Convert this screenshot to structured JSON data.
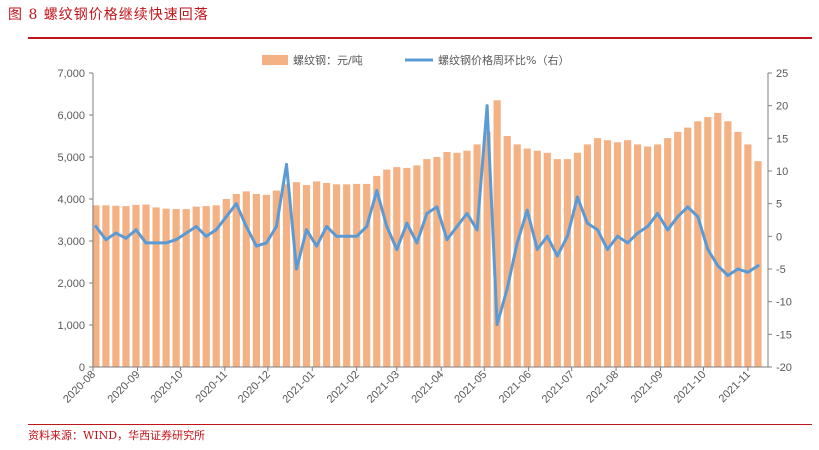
{
  "figure": {
    "title": "图 8   螺纹钢价格继续快速回落",
    "source": "资料来源：WIND，华西证券研究所"
  },
  "colors": {
    "accent": "#c0141b",
    "bar": "#f4b183",
    "line": "#5b9bd5",
    "axis": "#7f7f7f"
  },
  "chart_data": {
    "type": "bar+line",
    "legend_position": "top",
    "grid": false,
    "series": [
      {
        "name": "螺纹钢：元/吨",
        "type": "bar",
        "axis": "left",
        "x": [
          "2020-08-03",
          "2020-08-10",
          "2020-08-17",
          "2020-08-24",
          "2020-08-31",
          "2020-09-07",
          "2020-09-14",
          "2020-09-21",
          "2020-09-28",
          "2020-10-05",
          "2020-10-12",
          "2020-10-19",
          "2020-10-26",
          "2020-11-02",
          "2020-11-09",
          "2020-11-16",
          "2020-11-23",
          "2020-11-30",
          "2020-12-07",
          "2020-12-14",
          "2020-12-21",
          "2020-12-28",
          "2021-01-04",
          "2021-01-11",
          "2021-01-18",
          "2021-01-25",
          "2021-02-01",
          "2021-02-08",
          "2021-02-15",
          "2021-02-22",
          "2021-03-01",
          "2021-03-08",
          "2021-03-15",
          "2021-03-22",
          "2021-03-29",
          "2021-04-05",
          "2021-04-12",
          "2021-04-19",
          "2021-04-26",
          "2021-05-03",
          "2021-05-10",
          "2021-05-17",
          "2021-05-24",
          "2021-05-31",
          "2021-06-07",
          "2021-06-14",
          "2021-06-21",
          "2021-06-28",
          "2021-07-05",
          "2021-07-12",
          "2021-07-19",
          "2021-07-26",
          "2021-08-02",
          "2021-08-09",
          "2021-08-16",
          "2021-08-23",
          "2021-08-30",
          "2021-09-06",
          "2021-09-13",
          "2021-09-20",
          "2021-09-27",
          "2021-10-04",
          "2021-10-11",
          "2021-10-18",
          "2021-10-25",
          "2021-11-01",
          "2021-11-08"
        ],
        "values": [
          3850,
          3850,
          3840,
          3830,
          3860,
          3870,
          3800,
          3770,
          3760,
          3760,
          3820,
          3830,
          3850,
          4000,
          4120,
          4180,
          4120,
          4100,
          4200,
          4350,
          4400,
          4330,
          4420,
          4380,
          4350,
          4350,
          4360,
          4360,
          4550,
          4700,
          4760,
          4740,
          4800,
          4950,
          5000,
          5120,
          5100,
          5150,
          5300,
          5600,
          6350,
          5500,
          5300,
          5200,
          5150,
          5100,
          4950,
          4950,
          5100,
          5300,
          5450,
          5400,
          5350,
          5400,
          5300,
          5250,
          5300,
          5450,
          5600,
          5700,
          5850,
          5950,
          6050,
          5850,
          5600,
          5300,
          4900
        ]
      },
      {
        "name": "螺纹钢价格周环比%（右）",
        "type": "line",
        "axis": "right",
        "x": [
          "2020-08-03",
          "2020-08-10",
          "2020-08-17",
          "2020-08-24",
          "2020-08-31",
          "2020-09-07",
          "2020-09-14",
          "2020-09-21",
          "2020-09-28",
          "2020-10-05",
          "2020-10-12",
          "2020-10-19",
          "2020-10-26",
          "2020-11-02",
          "2020-11-09",
          "2020-11-16",
          "2020-11-23",
          "2020-11-30",
          "2020-12-07",
          "2020-12-14",
          "2020-12-21",
          "2020-12-28",
          "2021-01-04",
          "2021-01-11",
          "2021-01-18",
          "2021-01-25",
          "2021-02-01",
          "2021-02-08",
          "2021-02-15",
          "2021-02-22",
          "2021-03-01",
          "2021-03-08",
          "2021-03-15",
          "2021-03-22",
          "2021-03-29",
          "2021-04-05",
          "2021-04-12",
          "2021-04-19",
          "2021-04-26",
          "2021-05-03",
          "2021-05-10",
          "2021-05-17",
          "2021-05-24",
          "2021-05-31",
          "2021-06-07",
          "2021-06-14",
          "2021-06-21",
          "2021-06-28",
          "2021-07-05",
          "2021-07-12",
          "2021-07-19",
          "2021-07-26",
          "2021-08-02",
          "2021-08-09",
          "2021-08-16",
          "2021-08-23",
          "2021-08-30",
          "2021-09-06",
          "2021-09-13",
          "2021-09-20",
          "2021-09-27",
          "2021-10-04",
          "2021-10-11",
          "2021-10-18",
          "2021-10-25",
          "2021-11-01",
          "2021-11-08"
        ],
        "values": [
          1.5,
          -0.5,
          0.5,
          -0.3,
          1.0,
          -1.0,
          -1.0,
          -1.0,
          -0.5,
          0.5,
          1.5,
          0.0,
          1.0,
          3.0,
          5.0,
          1.5,
          -1.5,
          -1.0,
          1.5,
          11.0,
          -5.0,
          1.0,
          -1.5,
          1.5,
          0.0,
          0.0,
          0.0,
          1.5,
          7.0,
          1.5,
          -2.0,
          2.0,
          -1.0,
          3.5,
          4.5,
          -0.5,
          1.5,
          3.5,
          1.0,
          20.0,
          -13.5,
          -8.0,
          -1.0,
          4.0,
          -2.0,
          0.0,
          -3.0,
          0.0,
          6.0,
          2.0,
          1.0,
          -2.0,
          0.0,
          -1.0,
          0.5,
          1.5,
          3.5,
          1.0,
          3.0,
          4.5,
          3.0,
          -2.0,
          -4.5,
          -6.0,
          -5.0,
          -5.5,
          -4.5
        ]
      }
    ],
    "x_ticks": [
      "2020-08",
      "2020-09",
      "2020-10",
      "2020-11",
      "2020-12",
      "2021-01",
      "2021-02",
      "2021-03",
      "2021-04",
      "2021-05",
      "2021-06",
      "2021-07",
      "2021-08",
      "2021-09",
      "2021-10",
      "2021-11"
    ],
    "y_left": {
      "ticks": [
        "0",
        "1,000",
        "2,000",
        "3,000",
        "4,000",
        "5,000",
        "6,000",
        "7,000"
      ],
      "ylim": [
        0,
        7000
      ]
    },
    "y_right": {
      "ticks": [
        "-20",
        "-15",
        "-10",
        "-5",
        "0",
        "5",
        "10",
        "15",
        "20",
        "25"
      ],
      "ylim": [
        -20,
        25
      ]
    }
  }
}
